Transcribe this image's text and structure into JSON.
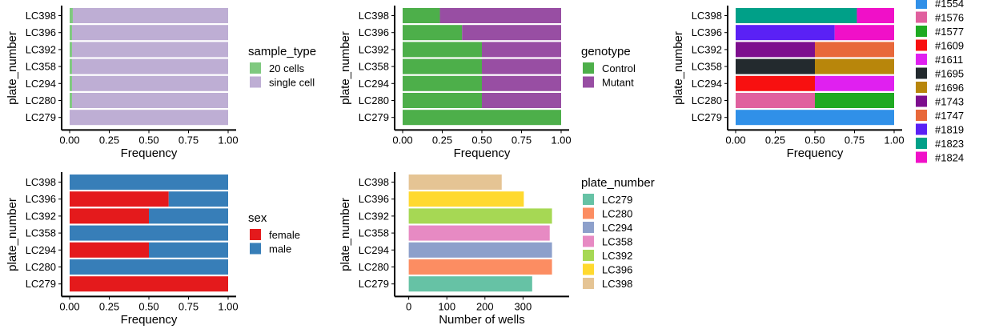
{
  "chart_data": [
    {
      "id": "p1",
      "type": "bar",
      "orientation": "horizontal",
      "stacked": true,
      "categories": [
        "LC279",
        "LC280",
        "LC294",
        "LC358",
        "LC392",
        "LC396",
        "LC398"
      ],
      "xlabel": "Frequency",
      "ylabel": "plate_number",
      "xlim": [
        0,
        1
      ],
      "xticks": [
        "0.00",
        "0.25",
        "0.50",
        "0.75",
        "1.00"
      ],
      "legend_title": "sample_type",
      "series": [
        {
          "name": "20 cells",
          "color": "#7FC97F",
          "values": [
            0.0,
            0.015,
            0.015,
            0.015,
            0.015,
            0.015,
            0.02
          ]
        },
        {
          "name": "single cell",
          "color": "#BEAED4",
          "values": [
            1.0,
            0.985,
            0.985,
            0.985,
            0.985,
            0.985,
            0.98
          ]
        }
      ]
    },
    {
      "id": "p2",
      "type": "bar",
      "orientation": "horizontal",
      "stacked": true,
      "categories": [
        "LC279",
        "LC280",
        "LC294",
        "LC358",
        "LC392",
        "LC396",
        "LC398"
      ],
      "xlabel": "Frequency",
      "ylabel": "plate_number",
      "xlim": [
        0,
        1
      ],
      "xticks": [
        "0.00",
        "0.25",
        "0.50",
        "0.75",
        "1.00"
      ],
      "legend_title": "genotype",
      "series": [
        {
          "name": "Control",
          "color": "#4DAF4A",
          "values": [
            1.0,
            0.5,
            0.5,
            0.5,
            0.5,
            0.375,
            0.235
          ]
        },
        {
          "name": "Mutant",
          "color": "#984EA3",
          "values": [
            0.0,
            0.5,
            0.5,
            0.5,
            0.5,
            0.625,
            0.765
          ]
        }
      ]
    },
    {
      "id": "p3",
      "type": "bar",
      "orientation": "horizontal",
      "stacked": true,
      "categories": [
        "LC279",
        "LC280",
        "LC294",
        "LC358",
        "LC392",
        "LC396",
        "LC398"
      ],
      "xlabel": "Frequency",
      "ylabel": "plate_number",
      "xlim": [
        0,
        1
      ],
      "xticks": [
        "0.00",
        "0.25",
        "0.50",
        "0.75",
        "1.00"
      ],
      "legend_title": "",
      "series": [
        {
          "name": "#1554",
          "color": "#3090E8",
          "values": [
            1.0,
            0,
            0,
            0,
            0,
            0,
            0
          ]
        },
        {
          "name": "#1576",
          "color": "#E0609E",
          "values": [
            0,
            0.5,
            0,
            0,
            0,
            0,
            0
          ]
        },
        {
          "name": "#1577",
          "color": "#1FAA22",
          "values": [
            0,
            0.5,
            0,
            0,
            0,
            0,
            0
          ]
        },
        {
          "name": "#1609",
          "color": "#F81010",
          "values": [
            0,
            0,
            0.5,
            0,
            0,
            0,
            0
          ]
        },
        {
          "name": "#1611",
          "color": "#E020F0",
          "values": [
            0,
            0,
            0.5,
            0,
            0,
            0,
            0
          ]
        },
        {
          "name": "#1695",
          "color": "#232A2E",
          "values": [
            0,
            0,
            0,
            0.5,
            0,
            0,
            0
          ]
        },
        {
          "name": "#1696",
          "color": "#B8860B",
          "values": [
            0,
            0,
            0,
            0.5,
            0,
            0,
            0
          ]
        },
        {
          "name": "#1743",
          "color": "#7D0E8E",
          "values": [
            0,
            0,
            0,
            0,
            0.5,
            0,
            0
          ]
        },
        {
          "name": "#1747",
          "color": "#E8683A",
          "values": [
            0,
            0,
            0,
            0,
            0.5,
            0,
            0
          ]
        },
        {
          "name": "#1819",
          "color": "#5A21F5",
          "values": [
            0,
            0,
            0,
            0,
            0,
            0.625,
            0
          ]
        },
        {
          "name": "#1823",
          "color": "#00A088",
          "values": [
            0,
            0,
            0,
            0,
            0,
            0,
            0.765
          ]
        },
        {
          "name": "#1824",
          "color": "#F010C8",
          "values": [
            0,
            0,
            0,
            0,
            0,
            0.375,
            0.235
          ]
        }
      ]
    },
    {
      "id": "p4",
      "type": "bar",
      "orientation": "horizontal",
      "stacked": true,
      "categories": [
        "LC279",
        "LC280",
        "LC294",
        "LC358",
        "LC392",
        "LC396",
        "LC398"
      ],
      "xlabel": "Frequency",
      "ylabel": "plate_number",
      "xlim": [
        0,
        1
      ],
      "xticks": [
        "0.00",
        "0.25",
        "0.50",
        "0.75",
        "1.00"
      ],
      "legend_title": "sex",
      "series": [
        {
          "name": "female",
          "color": "#E41A1C",
          "values": [
            1.0,
            0.0,
            0.5,
            0.0,
            0.5,
            0.625,
            0.0
          ]
        },
        {
          "name": "male",
          "color": "#377EB8",
          "values": [
            0.0,
            1.0,
            0.5,
            1.0,
            0.5,
            0.375,
            1.0
          ]
        }
      ]
    },
    {
      "id": "p5",
      "type": "bar",
      "orientation": "horizontal",
      "stacked": false,
      "categories": [
        "LC279",
        "LC280",
        "LC294",
        "LC358",
        "LC392",
        "LC396",
        "LC398"
      ],
      "xlabel": "Number of wells",
      "ylabel": "plate_number",
      "xlim": [
        -16,
        400
      ],
      "xticks": [
        "0",
        "100",
        "200",
        "300"
      ],
      "xtick_values": [
        0,
        100,
        200,
        300
      ],
      "legend_title": "plate_number",
      "values": [
        324,
        376,
        376,
        370,
        376,
        302,
        244
      ],
      "colors": [
        "#66C2A5",
        "#FC8D62",
        "#8DA0CB",
        "#E78AC3",
        "#A6D854",
        "#FFD92F",
        "#E5C494"
      ],
      "legend": [
        "LC279",
        "LC280",
        "LC294",
        "LC358",
        "LC392",
        "LC396",
        "LC398"
      ]
    }
  ]
}
